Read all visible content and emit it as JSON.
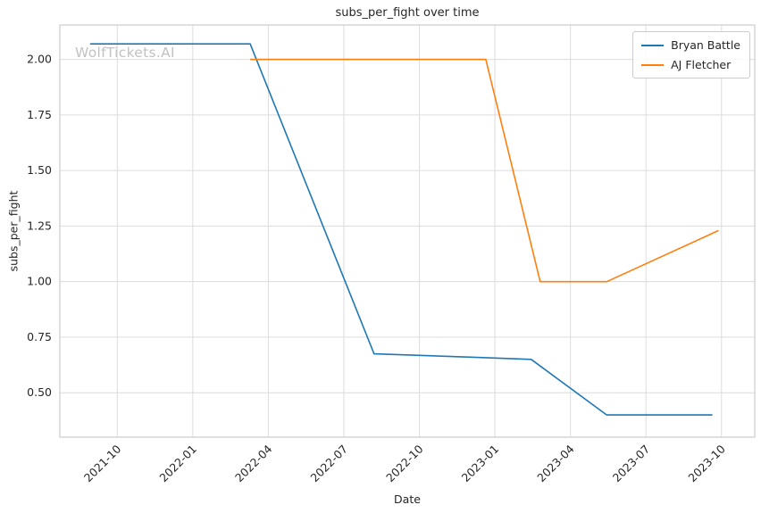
{
  "chart": {
    "watermark": "WolfTickets.AI"
  },
  "chart_data": {
    "type": "line",
    "title": "subs_per_fight over time",
    "xlabel": "Date",
    "ylabel": "subs_per_fight",
    "xlim": [
      2021.56,
      2023.86
    ],
    "ylim": [
      0.3,
      2.155
    ],
    "grid": true,
    "legend_position": "upper right",
    "colors": {
      "grid": "#dcdcdc",
      "frame": "#cccccc",
      "text": "#262626",
      "watermark": "#c2c2c2"
    },
    "xticks": [
      {
        "v": 2021.75,
        "label": "2021-10"
      },
      {
        "v": 2022.0,
        "label": "2022-01"
      },
      {
        "v": 2022.25,
        "label": "2022-04"
      },
      {
        "v": 2022.5,
        "label": "2022-07"
      },
      {
        "v": 2022.75,
        "label": "2022-10"
      },
      {
        "v": 2023.0,
        "label": "2023-01"
      },
      {
        "v": 2023.25,
        "label": "2023-04"
      },
      {
        "v": 2023.5,
        "label": "2023-07"
      },
      {
        "v": 2023.75,
        "label": "2023-10"
      }
    ],
    "yticks": [
      {
        "v": 0.5,
        "label": "0.50"
      },
      {
        "v": 0.75,
        "label": "0.75"
      },
      {
        "v": 1.0,
        "label": "1.00"
      },
      {
        "v": 1.25,
        "label": "1.25"
      },
      {
        "v": 1.5,
        "label": "1.50"
      },
      {
        "v": 1.75,
        "label": "1.75"
      },
      {
        "v": 2.0,
        "label": "2.00"
      }
    ],
    "series": [
      {
        "id": "bryan-battle",
        "name": "Bryan Battle",
        "color": "#1f77b4",
        "points": [
          {
            "date": "2021-09",
            "x": 2021.66,
            "y": 2.07
          },
          {
            "date": "2022-03",
            "x": 2022.19,
            "y": 2.07
          },
          {
            "date": "2022-08",
            "x": 2022.6,
            "y": 0.675
          },
          {
            "date": "2022-12",
            "x": 2022.92,
            "y": 0.66
          },
          {
            "date": "2023-02",
            "x": 2023.12,
            "y": 0.65
          },
          {
            "date": "2023-05",
            "x": 2023.37,
            "y": 0.4
          },
          {
            "date": "2023-09",
            "x": 2023.72,
            "y": 0.4
          }
        ]
      },
      {
        "id": "aj-fletcher",
        "name": "AJ Fletcher",
        "color": "#ff7f0e",
        "points": [
          {
            "date": "2022-03",
            "x": 2022.19,
            "y": 2.0
          },
          {
            "date": "2022-12",
            "x": 2022.97,
            "y": 2.0
          },
          {
            "date": "2023-02",
            "x": 2023.15,
            "y": 1.0
          },
          {
            "date": "2023-05",
            "x": 2023.37,
            "y": 1.0
          },
          {
            "date": "2023-10",
            "x": 2023.74,
            "y": 1.23
          }
        ]
      }
    ]
  }
}
